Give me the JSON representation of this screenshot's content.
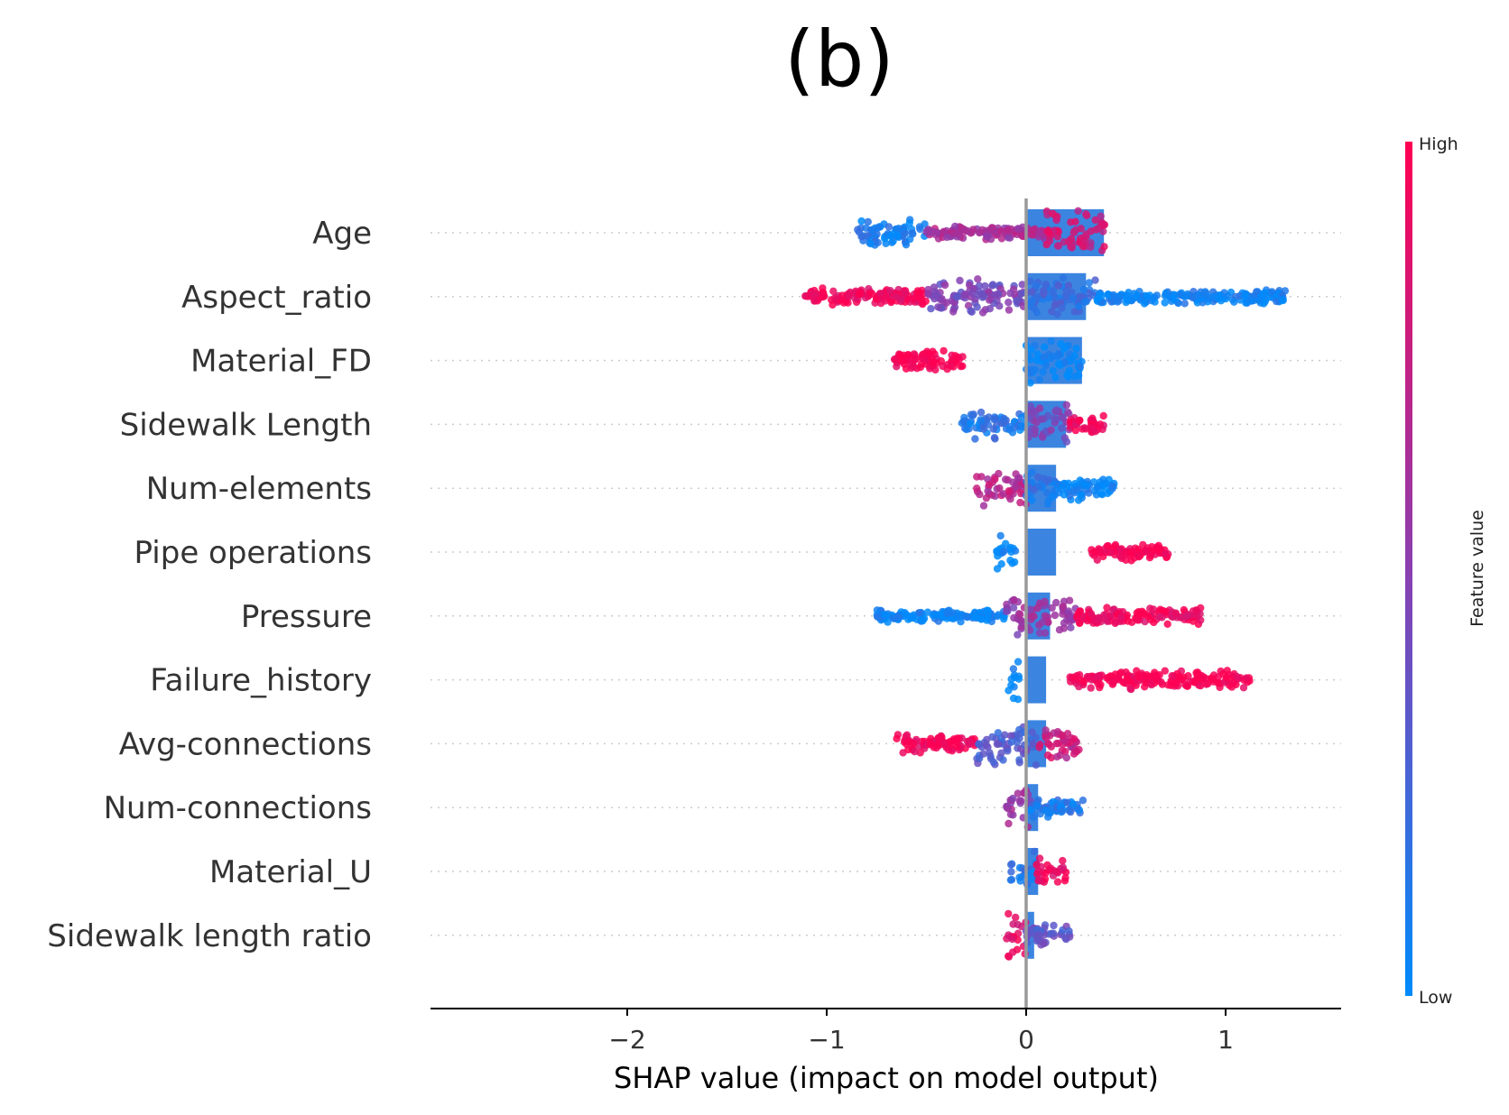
{
  "chart_data": {
    "type": "beeswarm",
    "title": "(b)",
    "xlabel": "SHAP value (impact on model output)",
    "xlim": [
      -3.0,
      1.6
    ],
    "xticks": [
      {
        "value": -2,
        "label": "−2"
      },
      {
        "value": -1,
        "label": "−1"
      },
      {
        "value": 0,
        "label": "0"
      },
      {
        "value": 1,
        "label": "1"
      }
    ],
    "colorbar": {
      "title": "Feature value",
      "high_label": "High",
      "low_label": "Low",
      "high_color": "#ff0052",
      "low_color": "#008bfb"
    },
    "features": [
      {
        "name": "Age",
        "bar_max": 0.39,
        "segments": [
          {
            "x0": -0.86,
            "x1": -0.5,
            "density": 0.55,
            "color": 0.08
          },
          {
            "x0": -0.5,
            "x1": 0.1,
            "density": 0.18,
            "color": 0.62
          },
          {
            "x0": 0.1,
            "x1": 0.4,
            "density": 1.0,
            "color": 0.8
          }
        ]
      },
      {
        "name": "Aspect_ratio",
        "bar_max": 0.3,
        "segments": [
          {
            "x0": -1.13,
            "x1": -0.5,
            "density": 0.25,
            "color": 0.95
          },
          {
            "x0": -0.5,
            "x1": 0.0,
            "density": 0.7,
            "color": 0.45
          },
          {
            "x0": 0.0,
            "x1": 0.35,
            "density": 0.75,
            "color": 0.2
          },
          {
            "x0": 0.35,
            "x1": 1.31,
            "density": 0.2,
            "color": 0.04
          }
        ]
      },
      {
        "name": "Material_FD",
        "bar_max": 0.28,
        "segments": [
          {
            "x0": -0.67,
            "x1": -0.3,
            "density": 0.35,
            "color": 1.0
          },
          {
            "x0": 0.0,
            "x1": 0.28,
            "density": 1.0,
            "color": 0.0
          }
        ]
      },
      {
        "name": "Sidewalk Length",
        "bar_max": 0.2,
        "segments": [
          {
            "x0": -0.33,
            "x1": 0.0,
            "density": 0.6,
            "color": 0.12
          },
          {
            "x0": 0.0,
            "x1": 0.22,
            "density": 0.85,
            "color": 0.45
          },
          {
            "x0": 0.22,
            "x1": 0.4,
            "density": 0.25,
            "color": 0.95
          }
        ]
      },
      {
        "name": "Num-elements",
        "bar_max": 0.15,
        "segments": [
          {
            "x0": -0.25,
            "x1": 0.0,
            "density": 0.8,
            "color": 0.7
          },
          {
            "x0": 0.0,
            "x1": 0.15,
            "density": 0.9,
            "color": 0.15
          },
          {
            "x0": 0.15,
            "x1": 0.45,
            "density": 0.45,
            "color": 0.02
          }
        ]
      },
      {
        "name": "Pipe operations",
        "bar_max": 0.15,
        "segments": [
          {
            "x0": -0.15,
            "x1": -0.05,
            "density": 0.8,
            "color": 0.0
          },
          {
            "x0": 0.32,
            "x1": 0.72,
            "density": 0.3,
            "color": 1.0
          }
        ]
      },
      {
        "name": "Pressure",
        "bar_max": 0.12,
        "segments": [
          {
            "x0": -0.75,
            "x1": -0.1,
            "density": 0.15,
            "color": 0.02
          },
          {
            "x0": -0.1,
            "x1": 0.25,
            "density": 0.8,
            "color": 0.55
          },
          {
            "x0": 0.25,
            "x1": 0.88,
            "density": 0.25,
            "color": 0.95
          }
        ]
      },
      {
        "name": "Failure_history",
        "bar_max": 0.1,
        "segments": [
          {
            "x0": -0.09,
            "x1": -0.03,
            "density": 1.0,
            "color": 0.0
          },
          {
            "x0": 0.22,
            "x1": 1.13,
            "density": 0.28,
            "color": 1.0
          }
        ]
      },
      {
        "name": "Avg-connections",
        "bar_max": 0.1,
        "segments": [
          {
            "x0": -0.65,
            "x1": -0.25,
            "density": 0.3,
            "color": 0.95
          },
          {
            "x0": -0.25,
            "x1": 0.05,
            "density": 0.9,
            "color": 0.3
          },
          {
            "x0": 0.05,
            "x1": 0.27,
            "density": 0.6,
            "color": 0.75
          }
        ]
      },
      {
        "name": "Num-connections",
        "bar_max": 0.06,
        "segments": [
          {
            "x0": -0.1,
            "x1": 0.02,
            "density": 0.9,
            "color": 0.55
          },
          {
            "x0": 0.02,
            "x1": 0.29,
            "density": 0.35,
            "color": 0.1
          }
        ]
      },
      {
        "name": "Material_U",
        "bar_max": 0.06,
        "segments": [
          {
            "x0": -0.08,
            "x1": 0.05,
            "density": 0.8,
            "color": 0.15
          },
          {
            "x0": 0.05,
            "x1": 0.2,
            "density": 0.45,
            "color": 0.95
          }
        ]
      },
      {
        "name": "Sidewalk length ratio",
        "bar_max": 0.04,
        "segments": [
          {
            "x0": -0.1,
            "x1": 0.0,
            "density": 1.0,
            "color": 0.9
          },
          {
            "x0": 0.0,
            "x1": 0.22,
            "density": 0.4,
            "color": 0.35
          }
        ]
      }
    ]
  }
}
